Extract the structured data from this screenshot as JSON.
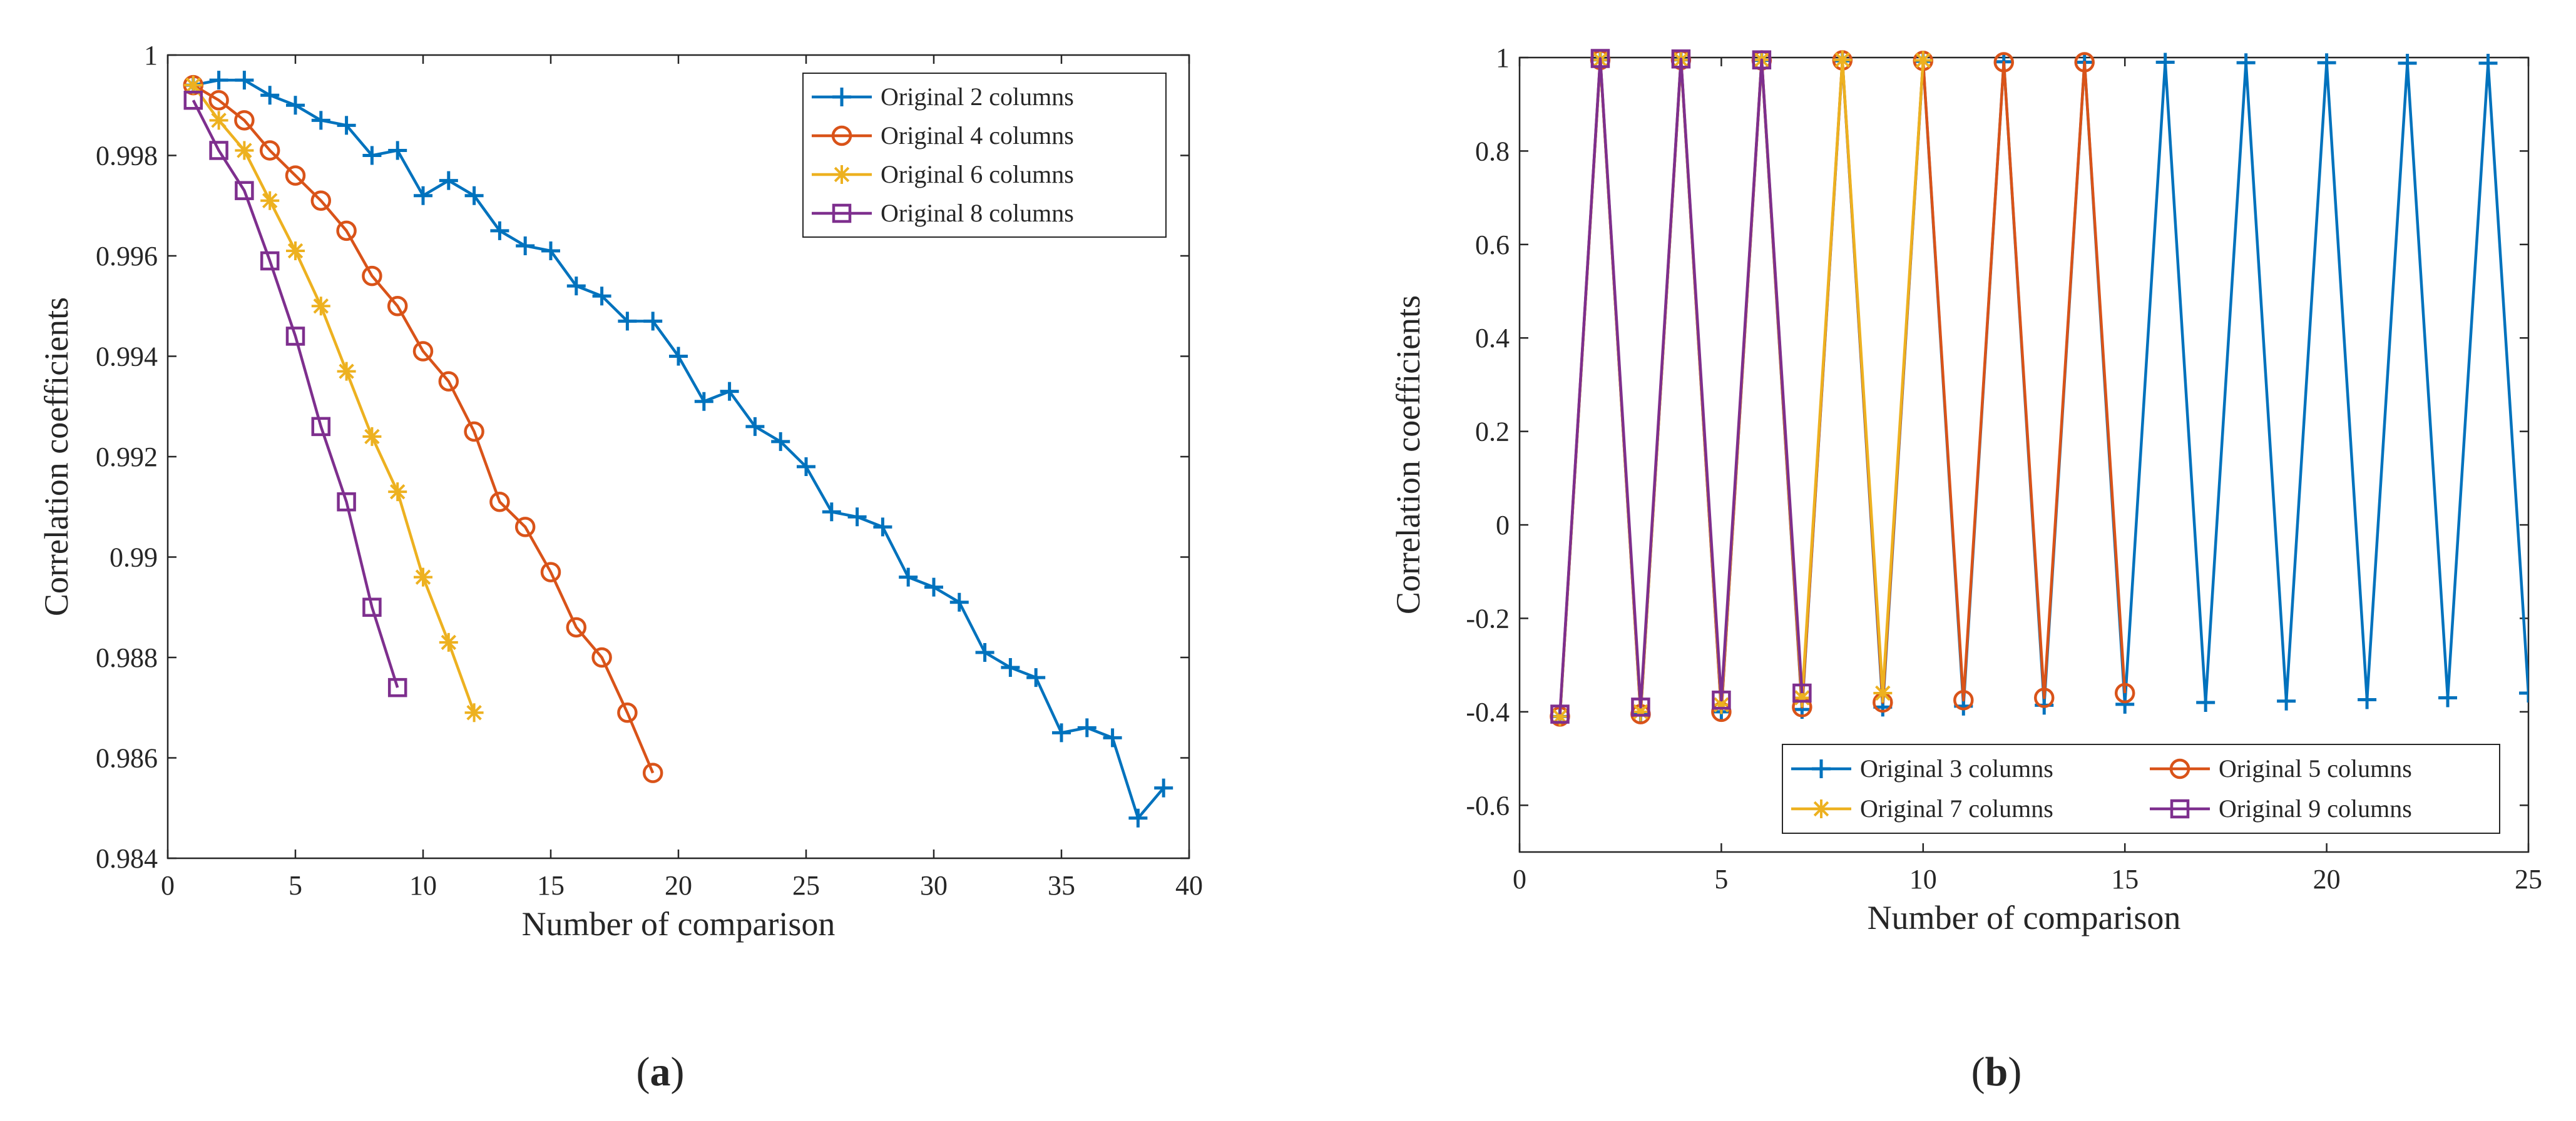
{
  "chart_data": [
    {
      "id": "a",
      "type": "line",
      "xlabel": "Number of comparison",
      "ylabel": "Correlation coefficients",
      "xlim": [
        0,
        40
      ],
      "ylim": [
        0.984,
        1
      ],
      "xticks": [
        0,
        5,
        10,
        15,
        20,
        25,
        30,
        35,
        40
      ],
      "xtick_labels": [
        "0",
        "5",
        "10",
        "15",
        "20",
        "25",
        "30",
        "35",
        "40"
      ],
      "yticks": [
        0.984,
        0.986,
        0.988,
        0.99,
        0.992,
        0.994,
        0.996,
        0.998,
        1
      ],
      "ytick_labels": [
        "0.984",
        "0.986",
        "0.988",
        "0.99",
        "0.992",
        "0.994",
        "0.996",
        "0.998",
        "1"
      ],
      "legend_position": "top-right",
      "legend_cols": 1,
      "series": [
        {
          "name": "Original 2 columns",
          "color": "#0072BD",
          "marker": "plus",
          "x": [
            1,
            2,
            3,
            4,
            5,
            6,
            7,
            8,
            9,
            10,
            11,
            12,
            13,
            14,
            15,
            16,
            17,
            18,
            19,
            20,
            21,
            22,
            23,
            24,
            25,
            26,
            27,
            28,
            29,
            30,
            31,
            32,
            33,
            34,
            35,
            36,
            37,
            38,
            39
          ],
          "y": [
            0.9994,
            0.9995,
            0.9995,
            0.9992,
            0.999,
            0.9987,
            0.9986,
            0.998,
            0.9981,
            0.9972,
            0.9975,
            0.9972,
            0.9965,
            0.9962,
            0.9961,
            0.9954,
            0.9952,
            0.9947,
            0.9947,
            0.994,
            0.9931,
            0.9933,
            0.9926,
            0.9923,
            0.9918,
            0.9909,
            0.9908,
            0.9906,
            0.9896,
            0.9894,
            0.9891,
            0.9881,
            0.9878,
            0.9876,
            0.9865,
            0.9866,
            0.9864,
            0.9848,
            0.9854
          ]
        },
        {
          "name": "Original 4 columns",
          "color": "#D95319",
          "marker": "circle",
          "x": [
            1,
            2,
            3,
            4,
            5,
            6,
            7,
            8,
            9,
            10,
            11,
            12,
            13,
            14,
            15,
            16,
            17,
            18,
            19
          ],
          "y": [
            0.9994,
            0.9991,
            0.9987,
            0.9981,
            0.9976,
            0.9971,
            0.9965,
            0.9956,
            0.995,
            0.9941,
            0.9935,
            0.9925,
            0.9911,
            0.9906,
            0.9897,
            0.9886,
            0.988,
            0.9869,
            0.9857
          ]
        },
        {
          "name": "Original 6 columns",
          "color": "#EDB120",
          "marker": "asterisk",
          "x": [
            1,
            2,
            3,
            4,
            5,
            6,
            7,
            8,
            9,
            10,
            11,
            12
          ],
          "y": [
            0.9994,
            0.9987,
            0.9981,
            0.9971,
            0.9961,
            0.995,
            0.9937,
            0.9924,
            0.9913,
            0.9896,
            0.9883,
            0.9869
          ]
        },
        {
          "name": "Original 8 columns",
          "color": "#7E2F8E",
          "marker": "square",
          "x": [
            1,
            2,
            3,
            4,
            5,
            6,
            7,
            8,
            9
          ],
          "y": [
            0.9991,
            0.9981,
            0.9973,
            0.9959,
            0.9944,
            0.9926,
            0.9911,
            0.989,
            0.9874
          ]
        }
      ]
    },
    {
      "id": "b",
      "type": "line",
      "xlabel": "Number of comparison",
      "ylabel": "Correlation coefficients",
      "xlim": [
        0,
        25
      ],
      "ylim": [
        -0.7,
        1
      ],
      "xticks": [
        0,
        5,
        10,
        15,
        20,
        25
      ],
      "xtick_labels": [
        "0",
        "5",
        "10",
        "15",
        "20",
        "25"
      ],
      "yticks": [
        -0.6,
        -0.4,
        -0.2,
        0,
        0.2,
        0.4,
        0.6,
        0.8,
        1
      ],
      "ytick_labels": [
        "-0.6",
        "-0.4",
        "-0.2",
        "0",
        "0.2",
        "0.4",
        "0.6",
        "0.8",
        "1"
      ],
      "legend_position": "bottom-right",
      "legend_cols": 2,
      "series": [
        {
          "name": "Original 3 columns",
          "color": "#0072BD",
          "marker": "plus",
          "x": [
            1,
            2,
            3,
            4,
            5,
            6,
            7,
            8,
            9,
            10,
            11,
            12,
            13,
            14,
            15,
            16,
            17,
            18,
            19,
            20,
            21,
            22,
            23,
            24,
            25
          ],
          "y": [
            -0.41,
            0.995,
            -0.405,
            0.995,
            -0.4,
            0.994,
            -0.395,
            0.993,
            -0.39,
            0.992,
            -0.388,
            0.991,
            -0.386,
            0.99,
            -0.384,
            0.99,
            -0.38,
            0.989,
            -0.377,
            0.989,
            -0.374,
            0.988,
            -0.37,
            0.988,
            -0.36
          ]
        },
        {
          "name": "Original 5 columns",
          "color": "#D95319",
          "marker": "circle",
          "x": [
            1,
            2,
            3,
            4,
            5,
            6,
            7,
            8,
            9,
            10,
            11,
            12,
            13,
            14,
            15
          ],
          "y": [
            -0.41,
            0.995,
            -0.405,
            0.995,
            -0.4,
            0.994,
            -0.39,
            0.994,
            -0.38,
            0.993,
            -0.375,
            0.99,
            -0.37,
            0.99,
            -0.36
          ]
        },
        {
          "name": "Original 7 columns",
          "color": "#EDB120",
          "marker": "asterisk",
          "x": [
            1,
            2,
            3,
            4,
            5,
            6,
            7,
            8,
            9,
            10
          ],
          "y": [
            -0.41,
            0.995,
            -0.4,
            0.995,
            -0.385,
            0.995,
            -0.37,
            0.995,
            -0.36,
            0.994
          ]
        },
        {
          "name": "Original 9 columns",
          "color": "#7E2F8E",
          "marker": "square",
          "x": [
            1,
            2,
            3,
            4,
            5,
            6,
            7
          ],
          "y": [
            -0.405,
            0.998,
            -0.39,
            0.997,
            -0.375,
            0.995,
            -0.36
          ]
        }
      ]
    }
  ],
  "captions": {
    "a": {
      "open": "(",
      "letter": "a",
      "close": ")"
    },
    "b": {
      "open": "(",
      "letter": "b",
      "close": ")"
    }
  }
}
